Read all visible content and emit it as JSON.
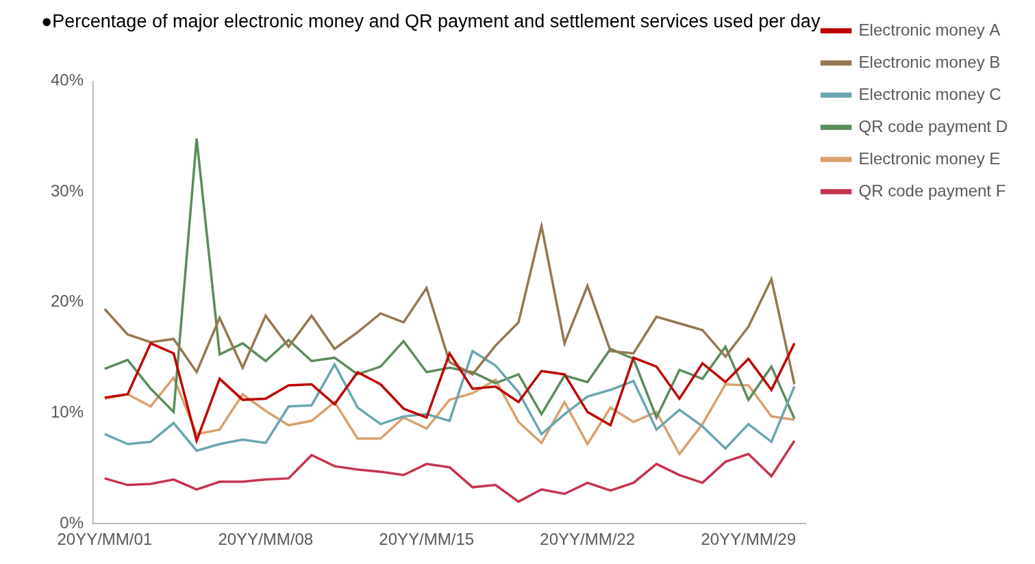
{
  "chart_data": {
    "type": "line",
    "title": "●Percentage of major electronic money and QR payment and settlement services used per day",
    "categories": [
      "20YY/MM/01",
      null,
      null,
      null,
      null,
      null,
      null,
      "20YY/MM/08",
      null,
      null,
      null,
      null,
      null,
      null,
      "20YY/MM/15",
      null,
      null,
      null,
      null,
      null,
      null,
      "20YY/MM/22",
      null,
      null,
      null,
      null,
      null,
      null,
      "20YY/MM/29",
      null,
      null
    ],
    "ylim": [
      0,
      40
    ],
    "yticks": [
      {
        "value": 0,
        "label": "0%"
      },
      {
        "value": 10,
        "label": "10%"
      },
      {
        "value": 20,
        "label": "20%"
      },
      {
        "value": 30,
        "label": "30%"
      },
      {
        "value": 40,
        "label": "40%"
      }
    ],
    "grid": false,
    "legend": "right",
    "series": [
      {
        "name": "Electronic money A",
        "color": "#c00000",
        "values": [
          11.4,
          11.7,
          16.3,
          15.4,
          7.5,
          13.1,
          11.2,
          11.3,
          12.5,
          12.6,
          10.8,
          13.7,
          12.6,
          10.4,
          9.6,
          15.4,
          12.2,
          12.4,
          11.0,
          13.8,
          13.5,
          10.1,
          8.9,
          15.0,
          14.2,
          11.3,
          14.5,
          12.8,
          14.9,
          12.1,
          16.3
        ]
      },
      {
        "name": "Electronic money B",
        "color": "#967750",
        "values": [
          19.4,
          17.1,
          16.4,
          16.7,
          13.7,
          18.6,
          14.1,
          18.8,
          16.0,
          18.8,
          15.8,
          17.3,
          19.0,
          18.2,
          21.3,
          14.6,
          13.5,
          16.1,
          18.2,
          26.9,
          16.3,
          21.5,
          15.6,
          15.4,
          18.7,
          18.1,
          17.5,
          15.1,
          17.8,
          22.1,
          12.6
        ]
      },
      {
        "name": "Electronic money C",
        "color": "#6aa6b0",
        "values": [
          8.1,
          7.2,
          7.4,
          9.1,
          6.6,
          7.2,
          7.6,
          7.3,
          10.6,
          10.7,
          14.4,
          10.5,
          9.0,
          9.7,
          9.9,
          9.3,
          15.6,
          14.3,
          11.9,
          8.1,
          9.9,
          11.5,
          12.1,
          12.9,
          8.5,
          10.3,
          8.8,
          6.8,
          9.0,
          7.4,
          12.4
        ]
      },
      {
        "name": "QR code payment D",
        "color": "#5b8c5a",
        "values": [
          14.0,
          14.8,
          12.2,
          10.1,
          34.8,
          15.3,
          16.3,
          14.7,
          16.6,
          14.7,
          15.0,
          13.5,
          14.2,
          16.5,
          13.7,
          14.1,
          13.7,
          12.7,
          13.5,
          9.9,
          13.4,
          12.8,
          15.8,
          14.9,
          9.6,
          13.9,
          13.1,
          16.0,
          11.2,
          14.2,
          9.5
        ]
      },
      {
        "name": "Electronic money E",
        "color": "#daa06d",
        "values": [
          11.3,
          11.7,
          10.6,
          13.2,
          8.1,
          8.5,
          11.7,
          10.2,
          8.9,
          9.3,
          11.0,
          7.7,
          7.7,
          9.6,
          8.6,
          11.2,
          11.8,
          13.0,
          9.2,
          7.3,
          11.0,
          7.2,
          10.5,
          9.2,
          10.1,
          6.3,
          9.0,
          12.6,
          12.5,
          9.7,
          9.4
        ]
      },
      {
        "name": "QR code payment F",
        "color": "#c7334f",
        "values": [
          4.1,
          3.5,
          3.6,
          4.0,
          3.1,
          3.8,
          3.8,
          4.0,
          4.1,
          6.2,
          5.2,
          4.9,
          4.7,
          4.4,
          5.4,
          5.1,
          3.3,
          3.5,
          2.0,
          3.1,
          2.7,
          3.7,
          3.0,
          3.7,
          5.4,
          4.4,
          3.7,
          5.6,
          6.3,
          4.3,
          7.5
        ]
      }
    ]
  }
}
